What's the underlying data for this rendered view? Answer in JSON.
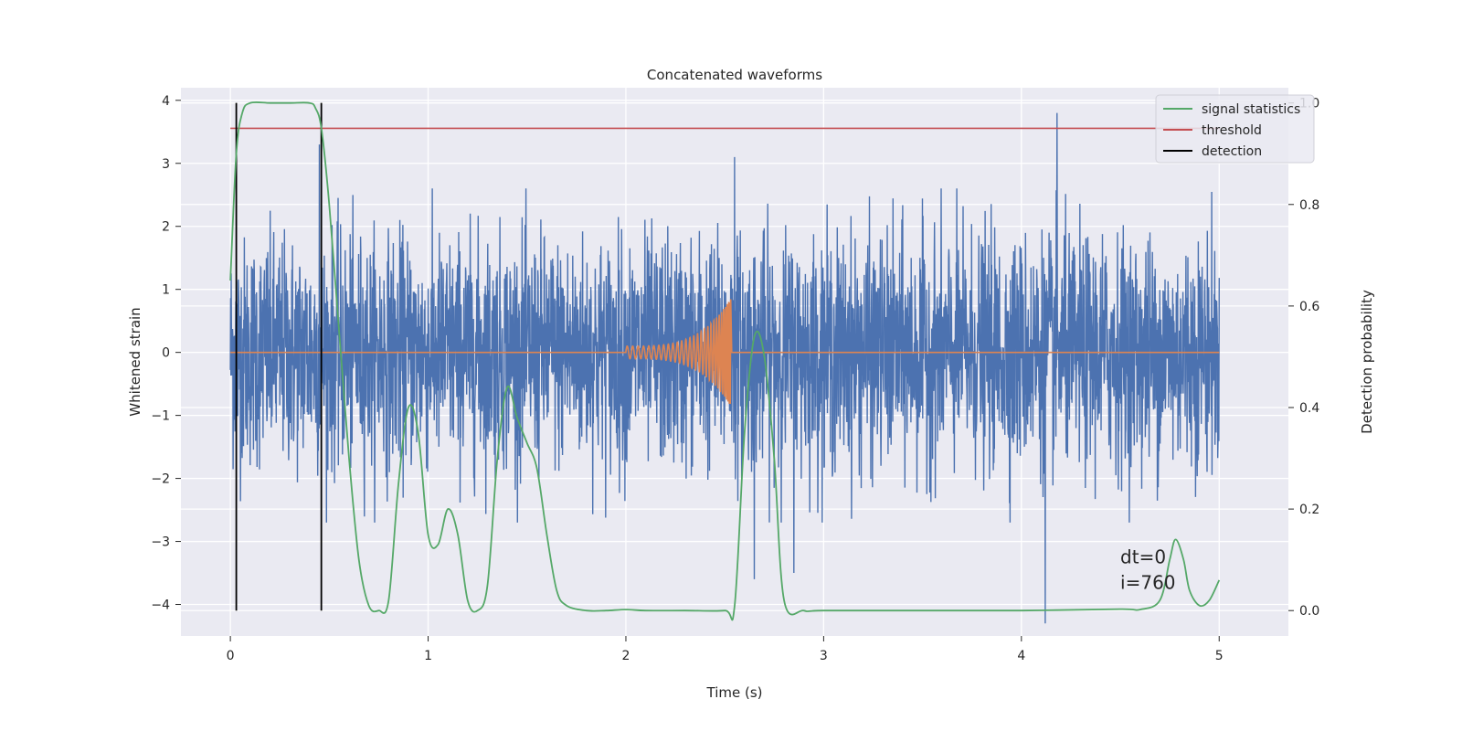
{
  "chart_data": {
    "type": "line",
    "title": "Concatenated waveforms",
    "xlabel": "Time (s)",
    "ylabel_left": "Whitened strain",
    "ylabel_right": "Detection probability",
    "xlim": [
      -0.25,
      5.35
    ],
    "ylim_left": [
      -4.5,
      4.2
    ],
    "ylim_right": [
      -0.05,
      1.03
    ],
    "x_ticks": [
      0,
      1,
      2,
      3,
      4,
      5
    ],
    "x_tick_labels": [
      "0",
      "1",
      "2",
      "3",
      "4",
      "5"
    ],
    "y_ticks_left": [
      4,
      3,
      2,
      1,
      0,
      -1,
      -2,
      -3,
      -4
    ],
    "y_tick_labels_left": [
      "4",
      "3",
      "2",
      "1",
      "0",
      "−1",
      "−2",
      "−3",
      "−4"
    ],
    "y_ticks_right": [
      1.0,
      0.8,
      0.6,
      0.4,
      0.2,
      0.0
    ],
    "y_tick_labels_right": [
      "1.0",
      "0.8",
      "0.6",
      "0.4",
      "0.2",
      "0.0"
    ],
    "grid": true,
    "legend_position": "top-right",
    "legend": [
      {
        "label": "signal statistics",
        "color": "#55a868"
      },
      {
        "label": "threshold",
        "color": "#c44e52"
      },
      {
        "label": "detection",
        "color": "#000000"
      }
    ],
    "annotations": [
      "dt=0",
      "i=760"
    ],
    "colors": {
      "strain": "#4c72b0",
      "injection": "#dd8452",
      "statistic": "#55a868",
      "threshold": "#c44e52",
      "detection": "#000000",
      "axes_bg": "#eaeaf2",
      "grid": "#ffffff"
    },
    "series": [
      {
        "name": "strain",
        "x_range": [
          0,
          5
        ],
        "typical_amplitude": 1.2,
        "spikes": [
          [
            0.45,
            3.3
          ],
          [
            2.55,
            3.1
          ],
          [
            4.18,
            3.8
          ],
          [
            4.12,
            -4.3
          ],
          [
            2.65,
            -3.6
          ],
          [
            2.85,
            -3.5
          ]
        ]
      },
      {
        "name": "injection",
        "x_range": [
          2.0,
          2.53
        ],
        "peak_amplitude": 0.85
      },
      {
        "name": "signal statistics",
        "x": [
          0.0,
          0.03,
          0.06,
          0.1,
          0.2,
          0.3,
          0.4,
          0.43,
          0.46,
          0.5,
          0.55,
          0.6,
          0.65,
          0.7,
          0.75,
          0.8,
          0.85,
          0.9,
          0.95,
          1.0,
          1.05,
          1.1,
          1.15,
          1.2,
          1.25,
          1.3,
          1.35,
          1.4,
          1.45,
          1.5,
          1.55,
          1.6,
          1.65,
          1.7,
          1.8,
          1.9,
          2.0,
          2.1,
          2.3,
          2.5,
          2.55,
          2.6,
          2.65,
          2.7,
          2.75,
          2.8,
          2.9,
          3.0,
          3.5,
          4.0,
          4.5,
          4.6,
          4.7,
          4.75,
          4.78,
          4.82,
          4.85,
          4.9,
          4.95,
          5.0
        ],
        "y": [
          0.65,
          0.9,
          0.98,
          1.0,
          1.0,
          1.0,
          1.0,
          0.99,
          0.95,
          0.8,
          0.55,
          0.3,
          0.1,
          0.01,
          0.0,
          0.02,
          0.25,
          0.4,
          0.35,
          0.15,
          0.13,
          0.2,
          0.15,
          0.02,
          0.0,
          0.05,
          0.3,
          0.44,
          0.38,
          0.33,
          0.28,
          0.15,
          0.04,
          0.01,
          0.0,
          0.0,
          0.002,
          0.0,
          0.0,
          0.0,
          0.01,
          0.35,
          0.54,
          0.5,
          0.3,
          0.02,
          0.0,
          0.0,
          0.0,
          0.0,
          0.003,
          0.002,
          0.02,
          0.1,
          0.14,
          0.1,
          0.04,
          0.01,
          0.02,
          0.06
        ]
      },
      {
        "name": "threshold",
        "value": 0.95,
        "x_range": [
          0,
          5
        ]
      },
      {
        "name": "detection",
        "x": [
          0.03,
          0.46
        ],
        "y_range": [
          0.0,
          1.0
        ]
      }
    ]
  }
}
